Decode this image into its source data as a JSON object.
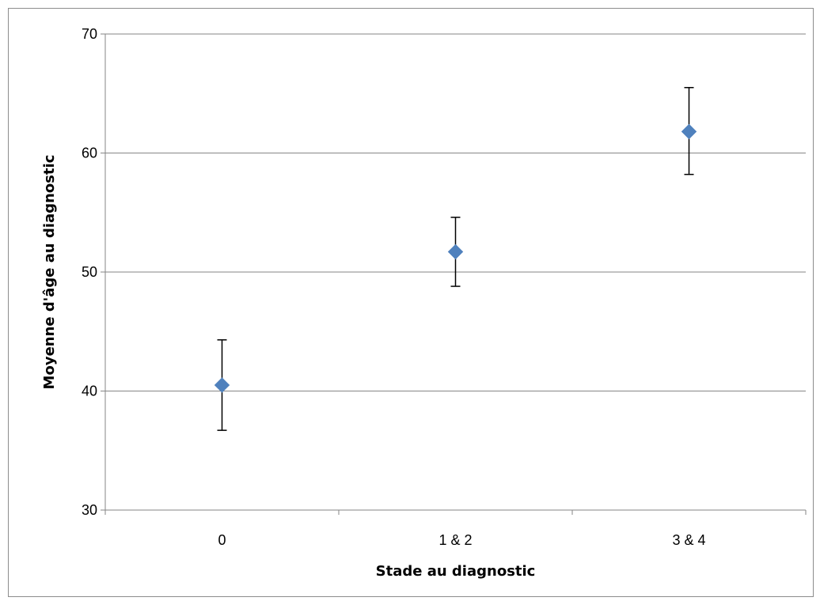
{
  "chart_data": {
    "type": "scatter",
    "title": "",
    "xlabel": "Stade au diagnostic",
    "ylabel": "Moyenne d'âge au diagnostic",
    "categories": [
      "0",
      "1 & 2",
      "3 & 4"
    ],
    "series": [
      {
        "values": [
          40.5,
          51.7,
          61.8
        ],
        "error_low": [
          36.7,
          48.8,
          58.2
        ],
        "error_high": [
          44.3,
          54.6,
          65.5
        ],
        "color": "#4f81bd",
        "marker": "diamond"
      }
    ],
    "ylim": [
      30,
      70
    ],
    "yticks": [
      "30",
      "40",
      "50",
      "60",
      "70"
    ],
    "grid": true,
    "legend": "none"
  }
}
